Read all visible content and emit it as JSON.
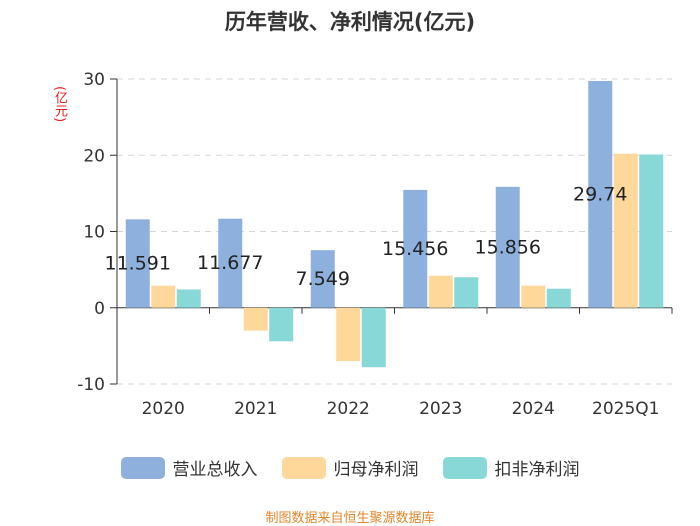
{
  "chart_data": {
    "type": "bar",
    "title": "历年营收、净利情况(亿元)",
    "ylabel": "(亿元)",
    "xlabel": "",
    "ylim": [
      -10,
      30
    ],
    "yticks": [
      -10,
      0,
      10,
      20,
      30
    ],
    "grid": true,
    "categories": [
      "2020",
      "2021",
      "2022",
      "2023",
      "2024",
      "2025Q1"
    ],
    "series": [
      {
        "name": "营业总收入",
        "color": "#8eb0dd",
        "values": [
          11.591,
          11.677,
          7.549,
          15.456,
          15.856,
          29.74
        ]
      },
      {
        "name": "归母净利润",
        "color": "#fdd89a",
        "values": [
          2.9,
          -3.0,
          -7.0,
          4.2,
          2.9,
          20.2
        ]
      },
      {
        "name": "扣非净利润",
        "color": "#88d8d8",
        "values": [
          2.4,
          -4.4,
          -7.8,
          4.0,
          2.5,
          20.1
        ]
      }
    ],
    "data_labels": [
      "11.591",
      "11.677",
      "7.549",
      "15.456",
      "15.856",
      "29.74"
    ],
    "legend_position": "bottom"
  },
  "footer": {
    "source": "制图数据来自恒生聚源数据库"
  }
}
